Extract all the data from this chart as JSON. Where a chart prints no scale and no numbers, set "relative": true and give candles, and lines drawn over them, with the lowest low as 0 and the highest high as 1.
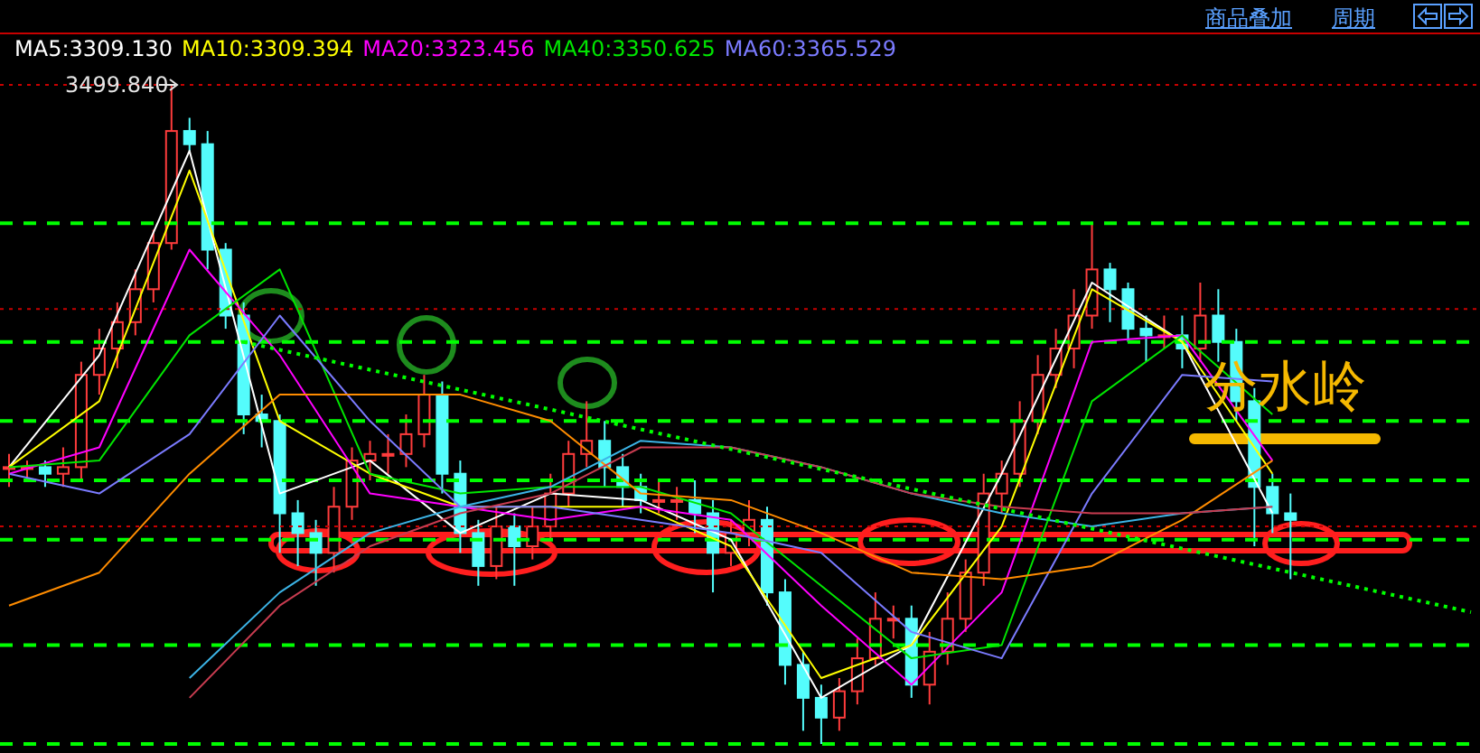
{
  "chart_data": {
    "type": "candlestick",
    "relative": true,
    "legend": "top left",
    "tick_labels": false,
    "categories": [
      null,
      null,
      null,
      null,
      null,
      null,
      null,
      null,
      null,
      null,
      null,
      null,
      null,
      null,
      null,
      null,
      null,
      null,
      null,
      null,
      null,
      null,
      null,
      null,
      null,
      null,
      null,
      null,
      null,
      null,
      null,
      null,
      null,
      null,
      null,
      null,
      null,
      null,
      null,
      null,
      null,
      null,
      null,
      null,
      null,
      null,
      null,
      null,
      null,
      null,
      null,
      null,
      null,
      null,
      null,
      null,
      null,
      null,
      null,
      null,
      null,
      null,
      null,
      null,
      null,
      null,
      null,
      null,
      null,
      null,
      null,
      null,
      null,
      null,
      null,
      null,
      null,
      null,
      null,
      null,
      null,
      null
    ],
    "colors": [
      "#ff3c3c",
      "#ff3c3c",
      "#54fcfc",
      "#ff3c3c",
      "#ff3c3c",
      "#ff3c3c",
      "#ff3c3c",
      "#ff3c3c",
      "#ff3c3c",
      "#ff3c3c",
      "#54fcfc",
      "#54fcfc",
      "#54fcfc",
      "#54fcfc",
      "#54fcfc",
      "#54fcfc",
      "#54fcfc",
      "#54fcfc",
      "#ff3c3c",
      "#ff3c3c",
      "#ff3c3c",
      "#ff3c3c",
      "#ff3c3c",
      "#ff3c3c",
      "#54fcfc",
      "#54fcfc",
      "#54fcfc",
      "#ff3c3c",
      "#54fcfc",
      "#ff3c3c",
      "#ff3c3c",
      "#ff3c3c",
      "#ff3c3c",
      "#54fcfc",
      "#54fcfc",
      "#54fcfc",
      "#ff3c3c",
      "#ff3c3c",
      "#54fcfc",
      "#54fcfc",
      "#ff3c3c",
      "#ff3c3c",
      "#54fcfc",
      "#54fcfc",
      "#54fcfc",
      "#54fcfc",
      "#ff3c3c",
      "#ff3c3c",
      "#ff3c3c",
      "#ff3c3c",
      "#54fcfc",
      "#ff3c3c",
      "#ff3c3c",
      "#ff3c3c",
      "#ff3c3c",
      "#ff3c3c",
      "#ff3c3c",
      "#ff3c3c",
      "#ff3c3c",
      "#ff3c3c",
      "#ff3c3c",
      "#54fcfc",
      "#54fcfc",
      "#54fcfc",
      "#ff3c3c",
      "#54fcfc",
      "#ff3c3c",
      "#54fcfc",
      "#54fcfc",
      "#54fcfc",
      "#54fcfc",
      "#54fcfc",
      null,
      null,
      null,
      null,
      null,
      null,
      null,
      null,
      null,
      null
    ],
    "ohlc": [
      [
        0.42,
        0.44,
        0.39,
        0.42
      ],
      [
        0.42,
        0.43,
        0.4,
        0.42
      ],
      [
        0.42,
        0.43,
        0.39,
        0.41
      ],
      [
        0.41,
        0.45,
        0.39,
        0.42
      ],
      [
        0.42,
        0.58,
        0.4,
        0.56
      ],
      [
        0.56,
        0.63,
        0.53,
        0.6
      ],
      [
        0.6,
        0.67,
        0.57,
        0.64
      ],
      [
        0.64,
        0.72,
        0.62,
        0.69
      ],
      [
        0.69,
        0.78,
        0.67,
        0.76
      ],
      [
        0.76,
        1.0,
        0.75,
        0.93
      ],
      [
        0.93,
        0.95,
        0.9,
        0.91
      ],
      [
        0.91,
        0.93,
        0.72,
        0.75
      ],
      [
        0.75,
        0.76,
        0.63,
        0.65
      ],
      [
        0.65,
        0.67,
        0.47,
        0.5
      ],
      [
        0.5,
        0.53,
        0.45,
        0.49
      ],
      [
        0.49,
        0.5,
        0.29,
        0.35
      ],
      [
        0.35,
        0.37,
        0.27,
        0.32
      ],
      [
        0.32,
        0.34,
        0.24,
        0.29
      ],
      [
        0.29,
        0.39,
        0.26,
        0.36
      ],
      [
        0.36,
        0.45,
        0.34,
        0.43
      ],
      [
        0.43,
        0.46,
        0.4,
        0.44
      ],
      [
        0.44,
        0.47,
        0.41,
        0.44
      ],
      [
        0.44,
        0.5,
        0.42,
        0.47
      ],
      [
        0.47,
        0.56,
        0.45,
        0.53
      ],
      [
        0.53,
        0.55,
        0.38,
        0.41
      ],
      [
        0.41,
        0.43,
        0.29,
        0.32
      ],
      [
        0.32,
        0.34,
        0.24,
        0.27
      ],
      [
        0.27,
        0.36,
        0.25,
        0.33
      ],
      [
        0.33,
        0.35,
        0.24,
        0.3
      ],
      [
        0.3,
        0.36,
        0.28,
        0.33
      ],
      [
        0.33,
        0.41,
        0.31,
        0.38
      ],
      [
        0.38,
        0.46,
        0.36,
        0.44
      ],
      [
        0.44,
        0.52,
        0.42,
        0.46
      ],
      [
        0.46,
        0.49,
        0.39,
        0.42
      ],
      [
        0.42,
        0.44,
        0.36,
        0.39
      ],
      [
        0.39,
        0.41,
        0.35,
        0.37
      ],
      [
        0.37,
        0.4,
        0.35,
        0.37
      ],
      [
        0.37,
        0.39,
        0.34,
        0.37
      ],
      [
        0.37,
        0.4,
        0.32,
        0.35
      ],
      [
        0.35,
        0.37,
        0.23,
        0.29
      ],
      [
        0.29,
        0.34,
        0.27,
        0.32
      ],
      [
        0.32,
        0.37,
        0.3,
        0.34
      ],
      [
        0.34,
        0.36,
        0.21,
        0.23
      ],
      [
        0.23,
        0.25,
        0.09,
        0.12
      ],
      [
        0.12,
        0.14,
        0.02,
        0.07
      ],
      [
        0.07,
        0.09,
        0.0,
        0.04
      ],
      [
        0.04,
        0.1,
        0.02,
        0.08
      ],
      [
        0.08,
        0.16,
        0.06,
        0.13
      ],
      [
        0.13,
        0.23,
        0.12,
        0.19
      ],
      [
        0.19,
        0.21,
        0.16,
        0.19
      ],
      [
        0.19,
        0.21,
        0.07,
        0.09
      ],
      [
        0.09,
        0.17,
        0.06,
        0.14
      ],
      [
        0.14,
        0.23,
        0.12,
        0.19
      ],
      [
        0.19,
        0.28,
        0.17,
        0.26
      ],
      [
        0.26,
        0.41,
        0.24,
        0.38
      ],
      [
        0.38,
        0.43,
        0.35,
        0.41
      ],
      [
        0.41,
        0.52,
        0.39,
        0.49
      ],
      [
        0.49,
        0.59,
        0.47,
        0.56
      ],
      [
        0.56,
        0.63,
        0.54,
        0.6
      ],
      [
        0.6,
        0.69,
        0.57,
        0.65
      ],
      [
        0.65,
        0.79,
        0.63,
        0.72
      ],
      [
        0.72,
        0.73,
        0.64,
        0.69
      ],
      [
        0.69,
        0.7,
        0.61,
        0.63
      ],
      [
        0.63,
        0.65,
        0.58,
        0.62
      ],
      [
        0.62,
        0.65,
        0.6,
        0.62
      ],
      [
        0.62,
        0.65,
        0.57,
        0.6
      ],
      [
        0.6,
        0.7,
        0.58,
        0.65
      ],
      [
        0.65,
        0.69,
        0.58,
        0.61
      ],
      [
        0.61,
        0.63,
        0.49,
        0.52
      ],
      [
        0.52,
        0.54,
        0.3,
        0.39
      ],
      [
        0.39,
        0.41,
        0.32,
        0.35
      ],
      [
        0.35,
        0.38,
        0.25,
        0.34
      ],
      null,
      null,
      null,
      null,
      null,
      null,
      null,
      null,
      null,
      null
    ],
    "series": [
      {
        "type": "line",
        "name": "MA5:3309.130",
        "color": "#ffffff",
        "values": [
          0.42,
          null,
          null,
          null,
          null,
          0.59,
          null,
          null,
          null,
          null,
          0.9,
          null,
          null,
          null,
          null,
          0.38,
          null,
          null,
          null,
          null,
          0.43,
          null,
          null,
          null,
          null,
          0.32,
          null,
          null,
          null,
          null,
          0.38,
          null,
          null,
          null,
          null,
          0.37,
          null,
          null,
          null,
          null,
          0.31,
          null,
          null,
          null,
          null,
          0.07,
          null,
          null,
          null,
          null,
          0.15,
          null,
          null,
          null,
          null,
          0.41,
          null,
          null,
          null,
          null,
          0.7,
          null,
          null,
          null,
          null,
          0.61,
          null,
          null,
          null,
          null,
          0.35,
          null,
          null,
          null,
          null,
          null,
          null,
          null,
          null,
          null,
          null,
          null
        ]
      },
      {
        "type": "line",
        "name": "MA10:3309.394",
        "color": "#ffff00",
        "values": [
          0.42,
          null,
          null,
          null,
          null,
          0.52,
          null,
          null,
          null,
          null,
          0.87,
          null,
          null,
          null,
          null,
          0.49,
          null,
          null,
          null,
          null,
          0.41,
          null,
          null,
          null,
          null,
          0.36,
          null,
          null,
          null,
          null,
          0.36,
          null,
          null,
          null,
          null,
          0.36,
          null,
          null,
          null,
          null,
          0.3,
          null,
          null,
          null,
          null,
          0.1,
          null,
          null,
          null,
          null,
          0.15,
          null,
          null,
          null,
          null,
          0.33,
          null,
          null,
          null,
          null,
          0.69,
          null,
          null,
          null,
          null,
          0.61,
          null,
          null,
          null,
          null,
          0.41,
          null,
          null,
          null,
          null,
          null,
          null,
          null,
          null,
          null,
          null,
          null
        ]
      },
      {
        "type": "line",
        "name": "MA20:3323.456",
        "color": "#ff00ff",
        "values": [
          0.41,
          null,
          null,
          null,
          null,
          0.45,
          null,
          null,
          null,
          null,
          0.75,
          null,
          null,
          null,
          null,
          0.59,
          null,
          null,
          null,
          null,
          0.38,
          null,
          null,
          null,
          null,
          0.36,
          null,
          null,
          null,
          null,
          0.34,
          null,
          null,
          null,
          null,
          0.36,
          null,
          null,
          null,
          null,
          0.34,
          null,
          null,
          null,
          null,
          0.21,
          null,
          null,
          null,
          null,
          0.09,
          null,
          null,
          null,
          null,
          0.23,
          null,
          null,
          null,
          null,
          0.61,
          null,
          null,
          null,
          null,
          0.62,
          null,
          null,
          null,
          null,
          0.43,
          null,
          null,
          null,
          null,
          null,
          null,
          null,
          null,
          null,
          null,
          null
        ]
      },
      {
        "type": "line",
        "name": "MA40:3350.625",
        "color": "#00e600",
        "values": [
          0.42,
          null,
          null,
          null,
          null,
          0.43,
          null,
          null,
          null,
          null,
          0.62,
          null,
          null,
          null,
          null,
          0.72,
          null,
          null,
          null,
          null,
          0.41,
          null,
          null,
          null,
          null,
          0.38,
          null,
          null,
          null,
          null,
          0.39,
          null,
          null,
          null,
          null,
          0.39,
          null,
          null,
          null,
          null,
          0.35,
          null,
          null,
          null,
          null,
          0.24,
          null,
          null,
          null,
          null,
          0.13,
          null,
          null,
          null,
          null,
          0.15,
          null,
          null,
          null,
          null,
          0.52,
          null,
          null,
          null,
          null,
          0.62,
          null,
          null,
          null,
          null,
          0.5,
          null,
          null,
          null,
          null,
          null,
          null,
          null,
          null,
          null,
          null,
          null
        ]
      },
      {
        "type": "line",
        "name": "MA60:3365.529",
        "color": "#7b7bff",
        "values": [
          0.41,
          null,
          null,
          null,
          null,
          0.38,
          null,
          null,
          null,
          null,
          0.47,
          null,
          null,
          null,
          null,
          0.65,
          null,
          null,
          null,
          null,
          0.49,
          null,
          null,
          null,
          null,
          0.36,
          null,
          null,
          null,
          null,
          0.36,
          null,
          null,
          null,
          null,
          0.34,
          null,
          null,
          null,
          null,
          0.32,
          null,
          null,
          null,
          null,
          0.29,
          null,
          null,
          null,
          null,
          0.17,
          null,
          null,
          null,
          null,
          0.13,
          null,
          null,
          null,
          null,
          0.38,
          null,
          null,
          null,
          null,
          0.56,
          null,
          null,
          null,
          null,
          0.55,
          null,
          null,
          null,
          null,
          null,
          null,
          null,
          null,
          null,
          null,
          null
        ]
      },
      {
        "type": "line",
        "color": "#ff8c00",
        "values": [
          0.21,
          null,
          null,
          null,
          null,
          0.26,
          null,
          null,
          null,
          null,
          0.41,
          null,
          null,
          null,
          null,
          0.53,
          null,
          null,
          null,
          null,
          0.53,
          null,
          null,
          null,
          null,
          0.53,
          null,
          null,
          null,
          null,
          0.49,
          null,
          null,
          null,
          null,
          0.38,
          null,
          null,
          null,
          null,
          0.37,
          null,
          null,
          null,
          null,
          0.32,
          null,
          null,
          null,
          null,
          0.26,
          null,
          null,
          null,
          null,
          0.25,
          null,
          null,
          null,
          null,
          0.27,
          null,
          null,
          null,
          null,
          0.34,
          null,
          null,
          null,
          null,
          0.43,
          null,
          null,
          null,
          null,
          null,
          null,
          null,
          null,
          null,
          null,
          null
        ]
      },
      {
        "type": "line",
        "color": "#3cb4e6",
        "values": [
          null,
          null,
          null,
          null,
          null,
          null,
          null,
          null,
          null,
          null,
          0.1,
          null,
          null,
          null,
          null,
          0.23,
          null,
          null,
          null,
          null,
          0.32,
          null,
          null,
          null,
          null,
          0.36,
          null,
          null,
          null,
          null,
          0.39,
          null,
          null,
          null,
          null,
          0.46,
          null,
          null,
          null,
          null,
          0.45,
          null,
          null,
          null,
          null,
          0.42,
          null,
          null,
          null,
          null,
          0.38,
          null,
          null,
          null,
          null,
          0.35,
          null,
          null,
          null,
          null,
          0.33,
          null,
          null,
          null,
          null,
          0.35,
          null,
          null,
          null,
          null,
          0.36,
          null,
          null,
          null,
          null,
          null,
          null,
          null,
          null,
          null,
          null,
          null
        ]
      },
      {
        "type": "line",
        "color": "#c83c50",
        "values": [
          null,
          null,
          null,
          null,
          null,
          null,
          null,
          null,
          null,
          null,
          0.07,
          null,
          null,
          null,
          null,
          0.21,
          null,
          null,
          null,
          null,
          0.3,
          null,
          null,
          null,
          null,
          0.35,
          null,
          null,
          null,
          null,
          0.38,
          null,
          null,
          null,
          null,
          0.45,
          null,
          null,
          null,
          null,
          0.45,
          null,
          null,
          null,
          null,
          0.42,
          null,
          null,
          null,
          null,
          0.38,
          null,
          null,
          null,
          null,
          0.36,
          null,
          null,
          null,
          null,
          0.35,
          null,
          null,
          null,
          null,
          0.35,
          null,
          null,
          null,
          null,
          0.36,
          null,
          null,
          null,
          null,
          null,
          null,
          null,
          null,
          null,
          null,
          null
        ]
      },
      {
        "type": "line",
        "color": "#00ff00",
        "line_style": "dotted",
        "values": [
          null,
          null,
          null,
          null,
          null,
          null,
          null,
          null,
          null,
          null,
          null,
          null,
          null,
          0.61,
          null,
          null,
          null,
          null,
          null,
          null,
          null,
          null,
          null,
          null,
          null,
          null,
          null,
          null,
          null,
          null,
          null,
          null,
          null,
          null,
          null,
          null,
          null,
          null,
          null,
          null,
          null,
          null,
          null,
          null,
          null,
          null,
          null,
          null,
          null,
          null,
          null,
          null,
          null,
          null,
          null,
          null,
          null,
          null,
          null,
          null,
          null,
          null,
          null,
          null,
          null,
          null,
          null,
          null,
          null,
          null,
          null,
          null,
          null,
          null,
          null,
          null,
          null,
          null,
          null,
          null,
          null,
          0.2
        ]
      }
    ],
    "ref_lines": [
      {
        "axis": "y",
        "value": 1.0,
        "color": "#c80000",
        "line_style": "dotted"
      },
      {
        "axis": "y",
        "value": 0.79,
        "color": "#00ff00",
        "line_style": "dashed"
      },
      {
        "axis": "y",
        "value": 0.66,
        "color": "#c80000",
        "line_style": "dotted"
      },
      {
        "axis": "y",
        "value": 0.61,
        "color": "#00ff00",
        "line_style": "dashed"
      },
      {
        "axis": "y",
        "value": 0.49,
        "color": "#00ff00",
        "line_style": "dashed"
      },
      {
        "axis": "y",
        "value": 0.4,
        "color": "#00ff00",
        "line_style": "dashed"
      },
      {
        "axis": "y",
        "value": 0.33,
        "color": "#c80000",
        "line_style": "dotted"
      },
      {
        "axis": "y",
        "value": 0.31,
        "color": "#00ff00",
        "line_style": "dashed"
      },
      {
        "axis": "y",
        "value": 0.15,
        "color": "#00ff00",
        "line_style": "dashed"
      },
      {
        "axis": "y",
        "value": 0.0,
        "color": "#00ff00",
        "line_style": "dashed"
      }
    ],
    "annotations": [
      "商品叠加",
      "周期",
      "3499.840",
      "分水岭"
    ]
  }
}
